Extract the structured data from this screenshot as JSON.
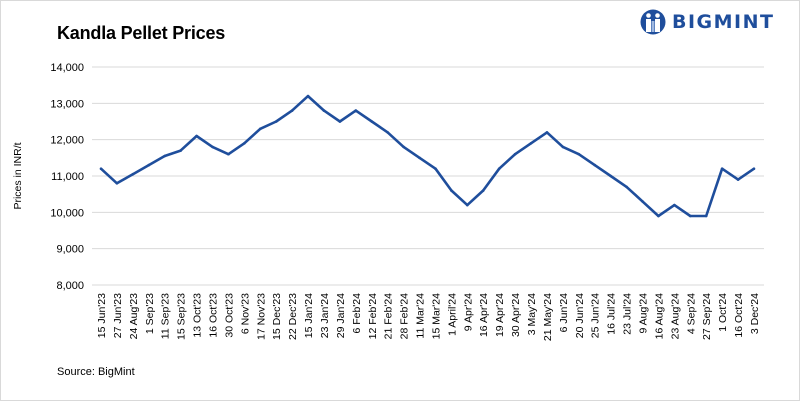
{
  "title": "Kandla Pellet Prices",
  "source": "Source: BigMint",
  "logo": {
    "text": "BIGMINT",
    "icon": "bigmint-figures-icon",
    "color": "#1f4e9c"
  },
  "chart_data": {
    "type": "line",
    "title": "Kandla Pellet Prices",
    "xlabel": "",
    "ylabel": "Prices in INR/t",
    "ylim": [
      8000,
      14000
    ],
    "yticks": [
      8000,
      9000,
      10000,
      11000,
      12000,
      13000,
      14000
    ],
    "ytick_labels": [
      "8,000",
      "9,000",
      "10,000",
      "11,000",
      "12,000",
      "13,000",
      "14,000"
    ],
    "grid": true,
    "line_color": "#1f4e9c",
    "categories": [
      "15 Jun'23",
      "27 Jun'23",
      "24 Aug'23",
      "1 Sep'23",
      "11 Sep'23",
      "15 Sep'23",
      "13 Oct'23",
      "16 Oct'23",
      "30 Oct'23",
      "6 Nov'23",
      "17 Nov'23",
      "15 Dec'23",
      "22 Dec'23",
      "15 Jan'24",
      "23 Jan'24",
      "29 Jan'24",
      "6 Feb'24",
      "12 Feb'24",
      "21 Feb'24",
      "28 Feb'24",
      "11 Mar'24",
      "15 Mar'24",
      "1 April'24",
      "9 Apr'24",
      "16 Apr'24",
      "19 Apr'24",
      "30 Apr'24",
      "3 May'24",
      "21 May'24",
      "6 Jun'24",
      "20 Jun'24",
      "25 Jun'24",
      "16 Jul'24",
      "23 Jul'24",
      "9 Aug'24",
      "16 Aug'24",
      "23 Aug'24",
      "4 Sep'24",
      "27 Sep'24",
      "1 Oct'24",
      "16 Oct'24",
      "3 Dec'24"
    ],
    "series": [
      {
        "values": [
          11200,
          10800,
          11050,
          11300,
          11550,
          11700,
          12100,
          11800,
          11600,
          11900,
          12300,
          12500,
          12800,
          13200,
          12800,
          12500,
          12800,
          12500,
          12200,
          11800,
          11500,
          11200,
          10600,
          10200,
          10600,
          11200,
          11600,
          11900,
          12200,
          11800,
          11600,
          11300,
          11000,
          10700,
          10300,
          9900,
          10200,
          9900,
          9900,
          11200,
          10900,
          11200
        ]
      }
    ]
  }
}
